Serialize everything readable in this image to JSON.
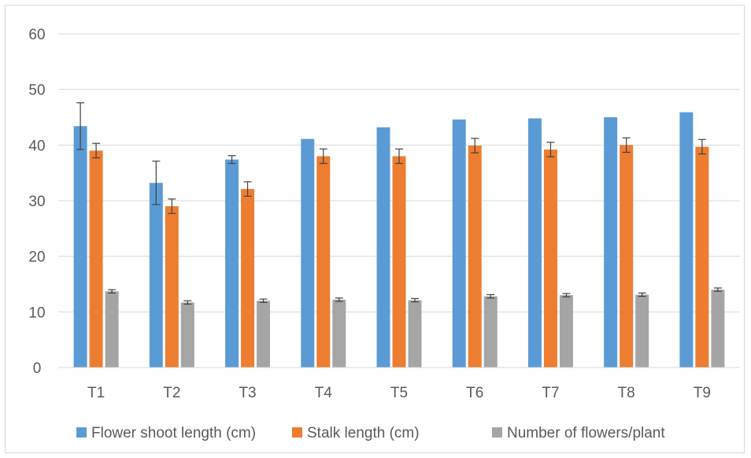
{
  "chart_data": {
    "type": "bar",
    "title": "",
    "xlabel": "",
    "ylabel": "",
    "categories": [
      "T1",
      "T2",
      "T3",
      "T4",
      "T5",
      "T6",
      "T7",
      "T8",
      "T9"
    ],
    "ylim": [
      0,
      60
    ],
    "yticks": [
      0,
      10,
      20,
      30,
      40,
      50,
      60
    ],
    "grid": true,
    "legend_position": "bottom",
    "series": [
      {
        "name": "Flower shoot length (cm)",
        "color": "#5b9bd5",
        "values": [
          43.4,
          33.2,
          37.4,
          41.1,
          43.2,
          44.6,
          44.8,
          45.0,
          45.9
        ],
        "errors": [
          4.2,
          3.9,
          0.7,
          0,
          0,
          0,
          0,
          0,
          0
        ]
      },
      {
        "name": "Stalk length (cm)",
        "color": "#ed7d31",
        "values": [
          39.0,
          29.0,
          32.1,
          38.0,
          38.0,
          39.9,
          39.2,
          40.0,
          39.7
        ],
        "errors": [
          1.3,
          1.3,
          1.3,
          1.3,
          1.3,
          1.3,
          1.3,
          1.3,
          1.3
        ]
      },
      {
        "name": "Number of flowers/plant",
        "color": "#a5a5a5",
        "values": [
          13.7,
          11.7,
          12.0,
          12.2,
          12.1,
          12.8,
          13.0,
          13.1,
          14.0
        ],
        "errors": [
          0.3,
          0.3,
          0.3,
          0.3,
          0.3,
          0.3,
          0.3,
          0.3,
          0.3
        ]
      }
    ]
  }
}
